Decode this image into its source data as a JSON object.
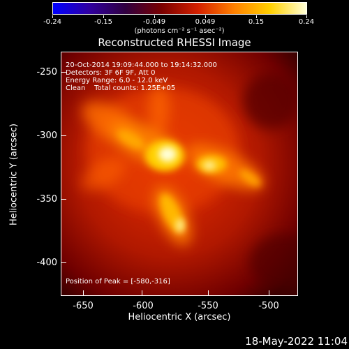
{
  "colorbar": {
    "tick_labels": [
      "-0.24",
      "-0.15",
      "-0.049",
      "0.049",
      "0.15",
      "0.24"
    ],
    "units": "(photons cm⁻² s⁻¹ asec⁻²)",
    "colormap": [
      "#0000ff",
      "#3000a0",
      "#300040",
      "#7a0000",
      "#d42000",
      "#ff8000",
      "#ffd000",
      "#ffffd8"
    ]
  },
  "plot": {
    "title": "Reconstructed RHESSI Image",
    "info_lines": [
      "20-Oct-2014 19:09:44.000 to 19:14:32.000",
      "Detectors: 3F 6F 9F, Att 0",
      "Energy Range: 6.0 - 12.0 keV",
      "Clean    Total counts: 1.25E+05"
    ],
    "peak_text": "Position of Peak = [-580,-316]",
    "xlabel": "Heliocentric X (arcsec)",
    "ylabel": "Heliocentric Y (arcsec)",
    "x_ticks": [
      "-650",
      "-600",
      "-550",
      "-500"
    ],
    "y_ticks": [
      "-250",
      "-300",
      "-350",
      "-400"
    ]
  },
  "datestamp": "18-May-2022 11:04"
}
